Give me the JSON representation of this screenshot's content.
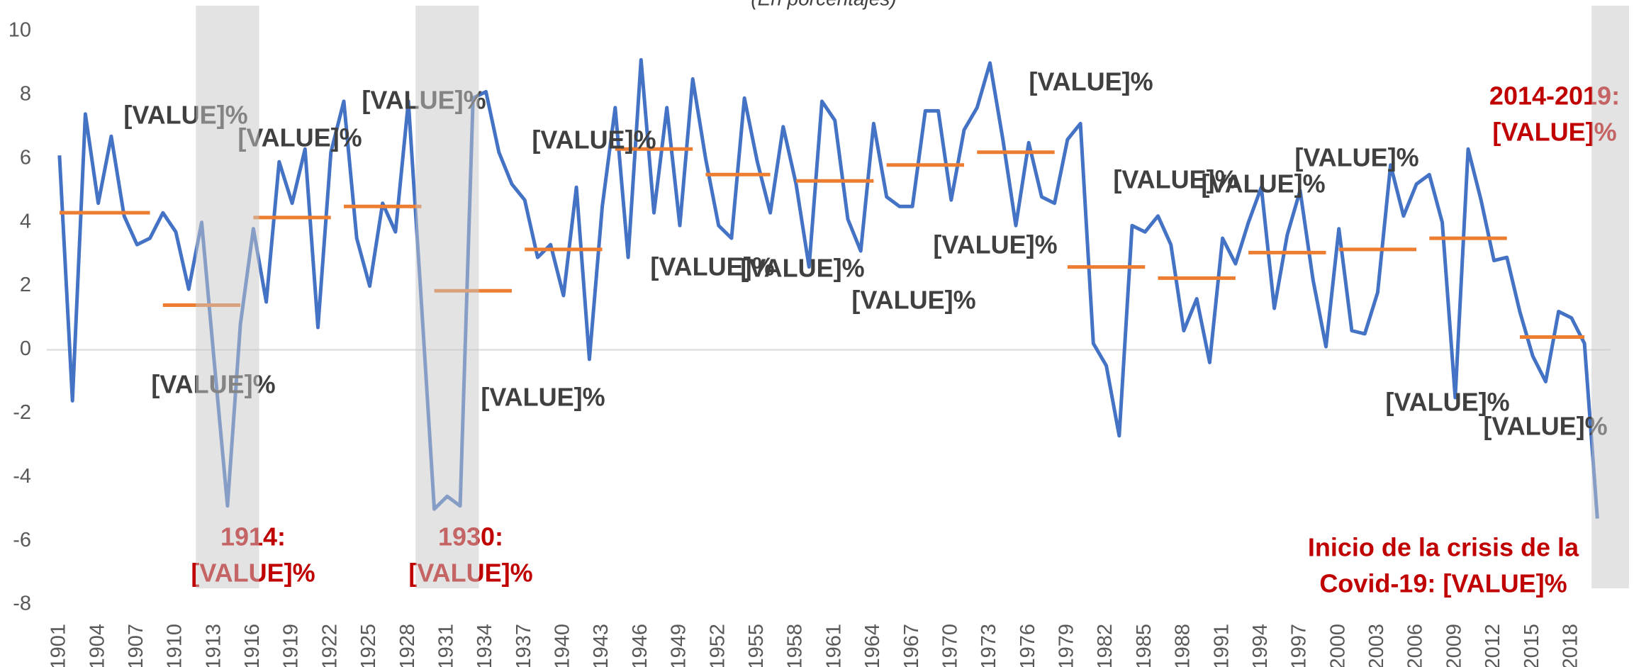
{
  "chart_data": {
    "type": "line",
    "subtitle": "(En porcentajes)",
    "x": [
      1901,
      1902,
      1903,
      1904,
      1905,
      1906,
      1907,
      1908,
      1909,
      1910,
      1911,
      1912,
      1913,
      1914,
      1915,
      1916,
      1917,
      1918,
      1919,
      1920,
      1921,
      1922,
      1923,
      1924,
      1925,
      1926,
      1927,
      1928,
      1929,
      1930,
      1931,
      1932,
      1933,
      1934,
      1935,
      1936,
      1937,
      1938,
      1939,
      1940,
      1941,
      1942,
      1943,
      1944,
      1945,
      1946,
      1947,
      1948,
      1949,
      1950,
      1951,
      1952,
      1953,
      1954,
      1955,
      1956,
      1957,
      1958,
      1959,
      1960,
      1961,
      1962,
      1963,
      1964,
      1965,
      1966,
      1967,
      1968,
      1969,
      1970,
      1971,
      1972,
      1973,
      1974,
      1975,
      1976,
      1977,
      1978,
      1979,
      1980,
      1981,
      1982,
      1983,
      1984,
      1985,
      1986,
      1987,
      1988,
      1989,
      1990,
      1991,
      1992,
      1993,
      1994,
      1995,
      1996,
      1997,
      1998,
      1999,
      2000,
      2001,
      2002,
      2003,
      2004,
      2005,
      2006,
      2007,
      2008,
      2009,
      2010,
      2011,
      2012,
      2013,
      2014,
      2015,
      2016,
      2017,
      2018,
      2019,
      2020
    ],
    "series": [
      {
        "color": "#4472c4",
        "values": [
          6.1,
          -1.6,
          7.4,
          4.6,
          6.7,
          4.2,
          3.3,
          3.5,
          4.3,
          3.7,
          1.9,
          4.0,
          -0.5,
          -4.9,
          0.8,
          3.8,
          1.5,
          5.9,
          4.6,
          6.3,
          0.7,
          6.2,
          7.8,
          3.5,
          2.0,
          4.6,
          3.7,
          7.8,
          1.5,
          -5.0,
          -4.6,
          -4.9,
          7.9,
          8.1,
          6.2,
          5.2,
          4.7,
          2.9,
          3.3,
          1.7,
          5.1,
          -0.3,
          4.5,
          7.6,
          2.9,
          9.1,
          4.3,
          7.6,
          3.9,
          8.5,
          6.0,
          3.9,
          3.5,
          7.9,
          5.9,
          4.3,
          7.0,
          5.2,
          2.6,
          7.8,
          7.2,
          4.1,
          3.1,
          7.1,
          4.8,
          4.5,
          4.5,
          7.5,
          7.5,
          4.7,
          6.9,
          7.6,
          9.0,
          6.6,
          3.9,
          6.5,
          4.8,
          4.6,
          6.6,
          7.1,
          0.2,
          -0.5,
          -2.7,
          3.9,
          3.7,
          4.2,
          3.3,
          0.6,
          1.6,
          -0.4,
          3.5,
          2.7,
          4.0,
          5.1,
          1.3,
          3.6,
          5.0,
          2.2,
          0.1,
          3.8,
          0.6,
          0.5,
          1.8,
          5.8,
          4.2,
          5.2,
          5.5,
          4.0,
          -1.5,
          6.3,
          4.7,
          2.8,
          2.9,
          1.2,
          -0.2,
          -1.0,
          1.2,
          1.0,
          0.2,
          -5.3
        ]
      }
    ],
    "averages": {
      "color": "#ed7d31",
      "periods": [
        {
          "start": 1901,
          "end": 1908,
          "value": 4.3
        },
        {
          "start": 1909,
          "end": 1915,
          "value": 1.4
        },
        {
          "start": 1916,
          "end": 1922,
          "value": 4.15
        },
        {
          "start": 1923,
          "end": 1929,
          "value": 4.5
        },
        {
          "start": 1930,
          "end": 1936,
          "value": 1.85
        },
        {
          "start": 1937,
          "end": 1943,
          "value": 3.15
        },
        {
          "start": 1944,
          "end": 1950,
          "value": 6.3
        },
        {
          "start": 1951,
          "end": 1956,
          "value": 5.5
        },
        {
          "start": 1958,
          "end": 1964,
          "value": 5.3
        },
        {
          "start": 1965,
          "end": 1971,
          "value": 5.8
        },
        {
          "start": 1972,
          "end": 1978,
          "value": 6.2
        },
        {
          "start": 1979,
          "end": 1985,
          "value": 2.6
        },
        {
          "start": 1986,
          "end": 1992,
          "value": 2.25
        },
        {
          "start": 1993,
          "end": 1999,
          "value": 3.05
        },
        {
          "start": 2000,
          "end": 2006,
          "value": 3.15
        },
        {
          "start": 2007,
          "end": 2013,
          "value": 3.5
        },
        {
          "start": 2014,
          "end": 2019,
          "value": 0.4
        }
      ]
    },
    "highlight_periods": [
      [
        1912,
        1916
      ],
      [
        1929,
        1933
      ],
      [
        2020,
        2022
      ]
    ],
    "xlim": [
      1900,
      2021
    ],
    "xticks": [
      1901,
      1904,
      1907,
      1910,
      1913,
      1916,
      1919,
      1922,
      1925,
      1928,
      1931,
      1934,
      1937,
      1940,
      1943,
      1946,
      1949,
      1952,
      1955,
      1958,
      1961,
      1964,
      1967,
      1970,
      1973,
      1976,
      1979,
      1982,
      1985,
      1988,
      1991,
      1994,
      1997,
      2000,
      2003,
      2006,
      2009,
      2012,
      2015,
      2018
    ],
    "ylim": [
      -8,
      10
    ],
    "yticks": [
      -8,
      -6,
      -4,
      -2,
      0,
      2,
      4,
      6,
      8,
      10
    ],
    "annotations": [
      "[VALUE]%",
      "[VALUE]%",
      "[VALUE]%",
      "[VALUE]%",
      "[VALUE]%",
      "[VALUE]%",
      "[VALUE]%",
      "[VALUE]%",
      "[VALUE]%",
      "[VALUE]%",
      "[VALUE]%",
      "[VALUE]%",
      "[VALUE]%",
      "[VALUE]%",
      "[VALUE]%",
      "[VALUE]%"
    ],
    "highlight_annotations": [
      {
        "lines": [
          "1914:",
          "[VALUE]%"
        ]
      },
      {
        "lines": [
          "1930:",
          "[VALUE]%"
        ]
      },
      {
        "lines": [
          "2014-2019:",
          "[VALUE]%"
        ]
      },
      {
        "lines": [
          "Inicio de la crisis de la",
          "Covid-19: [VALUE]%"
        ]
      }
    ],
    "highlight_color": "#c00000"
  }
}
